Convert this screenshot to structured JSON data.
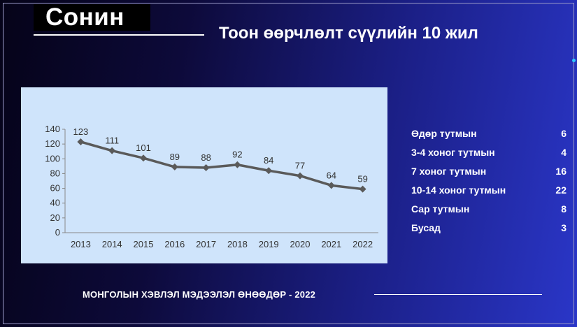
{
  "slide": {
    "title": "Сонин",
    "subtitle": "Тоон өөрчлөлт сүүлийн 10 жил",
    "footer": "МОНГОЛЫН ХЭВЛЭЛ МЭДЭЭЛЭЛ ӨНӨӨДӨР - 2022"
  },
  "colors": {
    "background_start": "#050318",
    "background_end": "#2a36c8",
    "chart_background": "#cfe4fb",
    "series_line": "#5a5a5a",
    "accent_dot": "#2fc8ff"
  },
  "chart_data": {
    "type": "line",
    "title": "",
    "xlabel": "",
    "ylabel": "",
    "x": [
      "2013",
      "2014",
      "2015",
      "2016",
      "2017",
      "2018",
      "2019",
      "2020",
      "2021",
      "2022"
    ],
    "series": [
      {
        "values": [
          123,
          111,
          101,
          89,
          88,
          92,
          84,
          77,
          64,
          59
        ]
      }
    ],
    "ylim": [
      0,
      140
    ],
    "yticks": [
      0,
      20,
      40,
      60,
      80,
      100,
      120,
      140
    ],
    "grid": false,
    "legend": "none",
    "data_labels": true,
    "marker": "diamond"
  },
  "stats": [
    {
      "label": "Өдөр тутмын",
      "value": "6"
    },
    {
      "label": "3-4 хоног тутмын",
      "value": "4"
    },
    {
      "label": "7 хоног тутмын",
      "value": "16"
    },
    {
      "label": "10-14 хоног тутмын",
      "value": "22"
    },
    {
      "label": "Сар тутмын",
      "value": "8"
    },
    {
      "label": "Бусад",
      "value": "3"
    }
  ]
}
